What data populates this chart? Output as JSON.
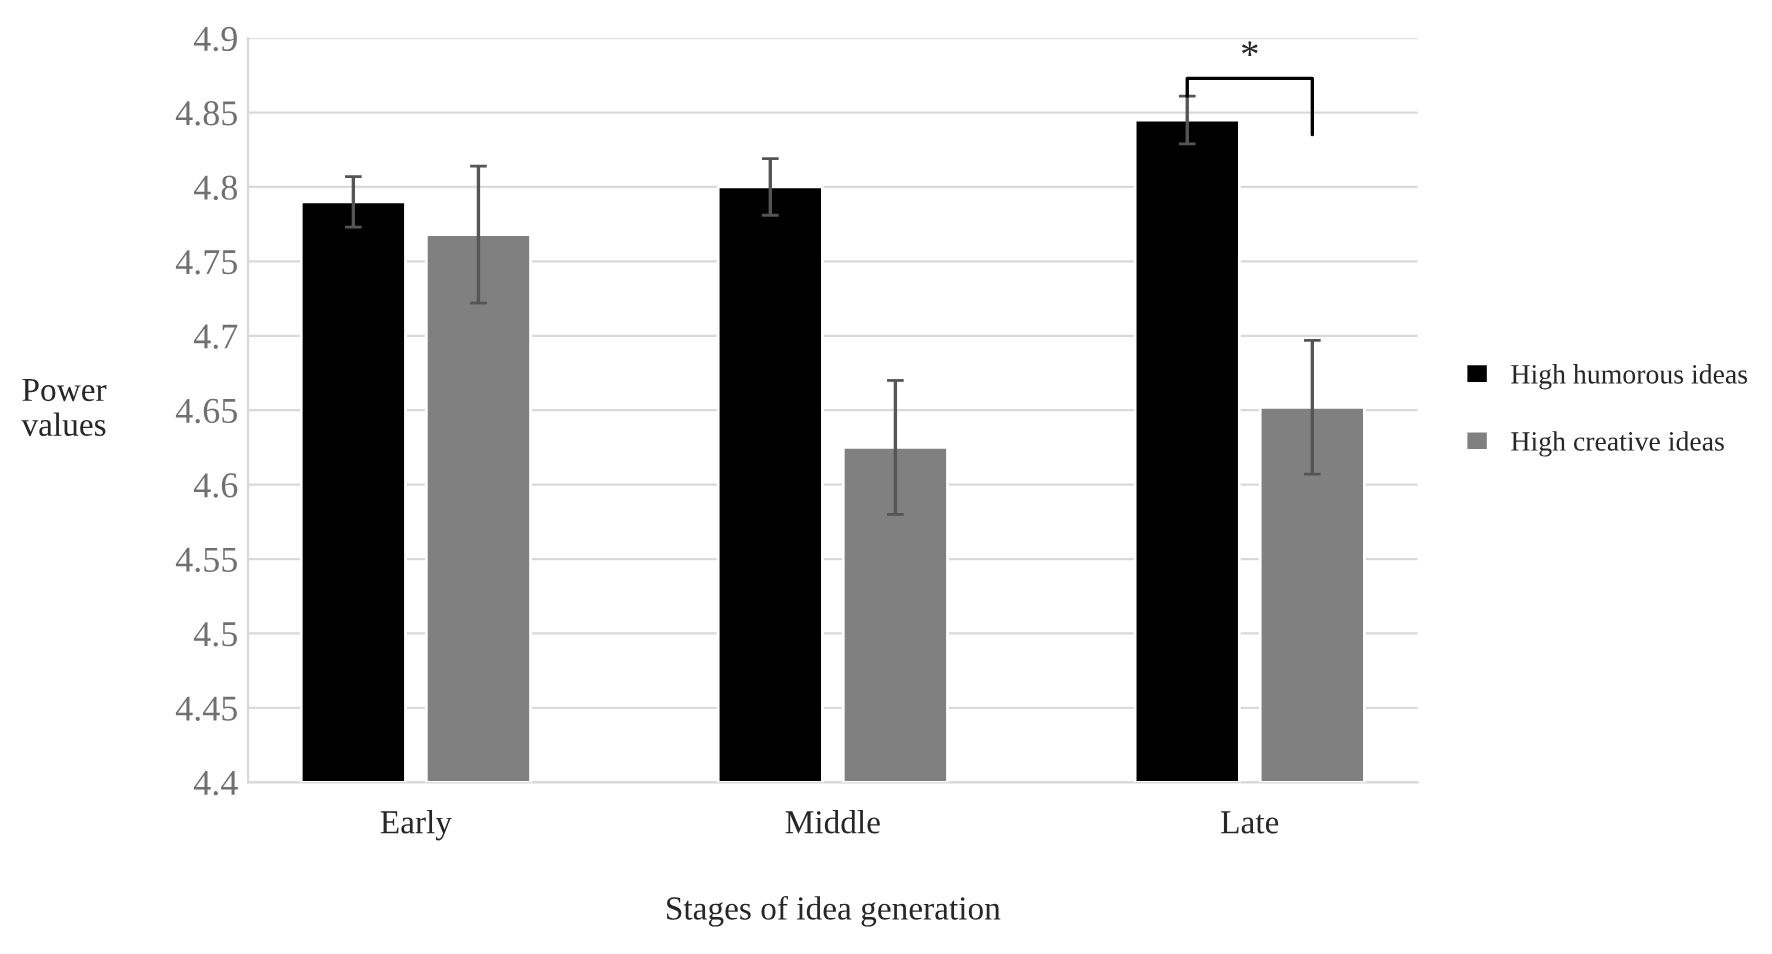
{
  "chart_data": {
    "type": "bar",
    "xlabel": "Stages of idea generation",
    "ylabel": "Power\nvalues",
    "categories": [
      "Early",
      "Middle",
      "Late"
    ],
    "series": [
      {
        "name": "High humorous ideas",
        "color": "#000000",
        "values": [
          4.79,
          4.8,
          4.845
        ],
        "errors": [
          0.017,
          0.019,
          0.016
        ]
      },
      {
        "name": "High creative ideas",
        "color": "#808080",
        "values": [
          4.768,
          4.625,
          4.652
        ],
        "errors": [
          0.046,
          0.045,
          0.045
        ]
      }
    ],
    "ylim": [
      4.4,
      4.9
    ],
    "yticks": [
      4.4,
      4.45,
      4.5,
      4.55,
      4.6,
      4.65,
      4.7,
      4.75,
      4.8,
      4.85,
      4.9
    ],
    "grid": "y",
    "legend": "right",
    "annotations": [
      "*"
    ]
  }
}
